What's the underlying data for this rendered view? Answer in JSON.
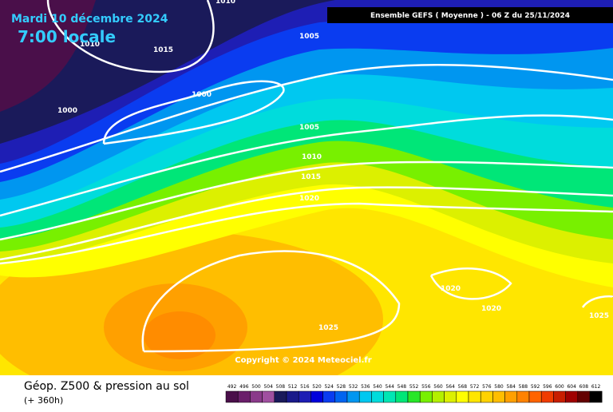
{
  "header": {
    "date": "Mardi 10 décembre 2024",
    "time": "7:00 locale",
    "run": "Ensemble GEFS  ( Moyenne )  -  06 Z du 25/11/2024"
  },
  "copyright": "Copyright © 2024 Meteociel.fr",
  "footer": {
    "title": "Géop. Z500 & pression au sol",
    "lead": "(+ 360h)"
  },
  "legend": {
    "labels": [
      492,
      496,
      500,
      504,
      508,
      512,
      516,
      520,
      524,
      528,
      532,
      536,
      540,
      544,
      548,
      552,
      556,
      560,
      564,
      568,
      572,
      576,
      580,
      584,
      588,
      592,
      596,
      600,
      604,
      608,
      612
    ],
    "colors": [
      "#4a0f4a",
      "#6a1f6a",
      "#8a3a8a",
      "#a050a0",
      "#1a1a5a",
      "#1a1a8a",
      "#1e1eb4",
      "#0000dc",
      "#0a3cf0",
      "#0064f0",
      "#0096f0",
      "#00c8f0",
      "#00dcdc",
      "#00e6b4",
      "#00e678",
      "#28e628",
      "#78f000",
      "#b4f000",
      "#dcf000",
      "#ffff00",
      "#ffe600",
      "#ffd200",
      "#ffbe00",
      "#ffa000",
      "#ff8200",
      "#ff6400",
      "#f03c00",
      "#c81e00",
      "#a00000",
      "#640000",
      "#000000"
    ]
  },
  "isobars": [
    "1010",
    "1010",
    "1015",
    "1005",
    "1000",
    "1000",
    "1005",
    "1010",
    "1015",
    "1020",
    "1020",
    "1020",
    "1025",
    "1025"
  ]
}
